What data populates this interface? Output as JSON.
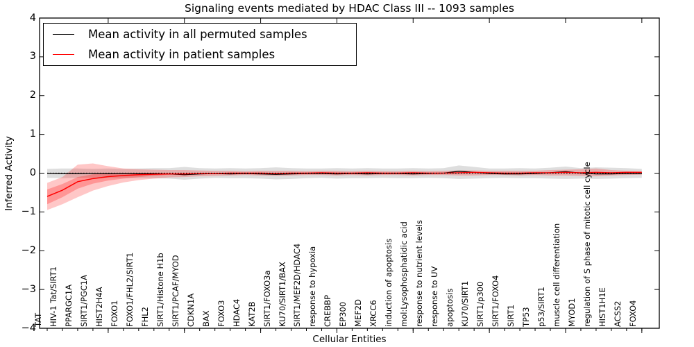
{
  "chart_data": {
    "type": "line",
    "title": "Signaling events mediated by HDAC Class III -- 1093 samples",
    "xlabel": "Cellular Entities",
    "ylabel": "Inferred Activity",
    "ylim": [
      -4,
      4
    ],
    "yticks": [
      "4",
      "3",
      "2",
      "1",
      "0",
      "−1",
      "−2",
      "−3",
      "−4"
    ],
    "grid": false,
    "legend_position": "upper-left",
    "zero_line": {
      "style": "dashed",
      "color": "#000000",
      "y": 0
    },
    "categories": [
      "TAT",
      "HIV-1 Tat/SIRT1",
      "PPARGC1A",
      "SIRT1/PGC1A",
      "HIST2H4A",
      "FOXO1",
      "FOXO1/FHL2/SIRT1",
      "FHL2",
      "SIRT1/Histone H1b",
      "SIRT1/PCAF/MYOD",
      "CDKN1A",
      "BAX",
      "FOXO3",
      "HDAC4",
      "KAT2B",
      "SIRT1/FOXO3a",
      "KU70/SIRT1/BAX",
      "SIRT1/MEF2D/HDAC4",
      "response to hypoxia",
      "CREBBP",
      "EP300",
      "MEF2D",
      "XRCC6",
      "induction of apoptosis",
      "mol:Lysophosphatidic acid",
      "response to nutrient levels",
      "response to UV",
      "apoptosis",
      "KU70/SIRT1",
      "SIRT1/p300",
      "SIRT1/FOXO4",
      "SIRT1",
      "TP53",
      "p53/SIRT1",
      "muscle cell differentiation",
      "MYOD1",
      "regulation of S phase of mitotic cell cycle",
      "HIST1H1E",
      "ACSS2",
      "FOXO4"
    ],
    "series": [
      {
        "name": "Mean activity in all permuted samples",
        "color": "#000000",
        "values": [
          -0.005,
          -0.01,
          -0.01,
          -0.005,
          -0.01,
          -0.005,
          -0.01,
          -0.01,
          -0.02,
          -0.04,
          -0.02,
          -0.01,
          -0.02,
          -0.01,
          -0.02,
          -0.03,
          -0.02,
          -0.01,
          -0.01,
          -0.02,
          -0.01,
          -0.02,
          -0.01,
          -0.01,
          -0.02,
          -0.01,
          0,
          0.05,
          0.02,
          -0.01,
          -0.02,
          -0.02,
          -0.01,
          0.01,
          0.04,
          0,
          -0.02,
          -0.02,
          -0.01,
          -0.01
        ]
      },
      {
        "name": "Mean activity in patient samples",
        "color": "#ff0000",
        "values": [
          -0.6,
          -0.44,
          -0.22,
          -0.14,
          -0.09,
          -0.06,
          -0.04,
          -0.03,
          -0.02,
          -0.02,
          -0.01,
          -0.01,
          0,
          0,
          0,
          -0.01,
          0,
          0,
          0.01,
          0,
          0,
          0.01,
          0,
          0,
          0.01,
          0,
          0,
          0.01,
          0.02,
          0.01,
          0,
          0,
          0.01,
          0.01,
          0.02,
          0.01,
          0.02,
          0.01,
          0.02,
          0.02
        ]
      }
    ],
    "bands": [
      {
        "name": "permuted-samples-range",
        "color": "#000000",
        "opacity": 0.13,
        "upper": [
          0.11,
          0.12,
          0.12,
          0.11,
          0.12,
          0.11,
          0.12,
          0.13,
          0.13,
          0.16,
          0.13,
          0.12,
          0.13,
          0.12,
          0.13,
          0.15,
          0.13,
          0.12,
          0.12,
          0.13,
          0.12,
          0.13,
          0.12,
          0.12,
          0.13,
          0.12,
          0.13,
          0.2,
          0.16,
          0.12,
          0.12,
          0.13,
          0.12,
          0.14,
          0.17,
          0.13,
          0.15,
          0.14,
          0.13,
          0.11
        ],
        "lower": [
          -0.12,
          -0.13,
          -0.12,
          -0.12,
          -0.12,
          -0.12,
          -0.13,
          -0.13,
          -0.14,
          -0.17,
          -0.14,
          -0.12,
          -0.13,
          -0.13,
          -0.14,
          -0.16,
          -0.15,
          -0.13,
          -0.12,
          -0.14,
          -0.13,
          -0.13,
          -0.12,
          -0.13,
          -0.13,
          -0.12,
          -0.13,
          -0.15,
          -0.14,
          -0.13,
          -0.12,
          -0.13,
          -0.13,
          -0.14,
          -0.15,
          -0.14,
          -0.15,
          -0.14,
          -0.13,
          -0.12
        ]
      },
      {
        "name": "patient-samples-range",
        "color": "#ff0000",
        "opacity": 0.22,
        "upper": [
          -0.25,
          -0.1,
          0.22,
          0.25,
          0.18,
          0.12,
          0.1,
          0.09,
          0.08,
          0.08,
          0.07,
          0.06,
          0.06,
          0.05,
          0.06,
          0.06,
          0.06,
          0.05,
          0.06,
          0.06,
          0.05,
          0.06,
          0.05,
          0.05,
          0.06,
          0.05,
          0.06,
          0.07,
          0.07,
          0.06,
          0.06,
          0.06,
          0.06,
          0.08,
          0.09,
          0.1,
          0.12,
          0.08,
          0.06,
          0.05
        ],
        "lower": [
          -0.95,
          -0.8,
          -0.62,
          -0.45,
          -0.33,
          -0.24,
          -0.18,
          -0.14,
          -0.11,
          -0.1,
          -0.08,
          -0.07,
          -0.06,
          -0.05,
          -0.06,
          -0.07,
          -0.06,
          -0.05,
          -0.05,
          -0.06,
          -0.05,
          -0.06,
          -0.05,
          -0.05,
          -0.06,
          -0.05,
          -0.05,
          -0.06,
          -0.06,
          -0.05,
          -0.05,
          -0.06,
          -0.05,
          -0.06,
          -0.06,
          -0.07,
          -0.08,
          -0.06,
          -0.05,
          -0.04
        ]
      },
      {
        "name": "patient-samples-inner-range",
        "color": "#ff0000",
        "opacity": 0.25,
        "upper": [
          -0.42,
          -0.28,
          -0.1,
          -0.03,
          0.0,
          0.01,
          0.01,
          0.0,
          -0.01,
          -0.02,
          -0.01,
          -0.01,
          0,
          0,
          0,
          -0.01,
          0,
          0,
          0.01,
          0,
          0,
          0.01,
          0,
          0,
          0.01,
          0,
          0,
          0.01,
          0.02,
          0.01,
          0,
          0,
          0.01,
          0.01,
          0.02,
          0.01,
          0.02,
          0.01,
          0.02,
          0.02
        ],
        "lower": [
          -0.8,
          -0.62,
          -0.4,
          -0.27,
          -0.19,
          -0.14,
          -0.1,
          -0.07,
          -0.04,
          -0.02,
          -0.01,
          -0.01,
          0,
          0,
          0,
          -0.01,
          0,
          0,
          0.01,
          0,
          0,
          0.01,
          0,
          0,
          0.01,
          0,
          0,
          0.01,
          0.02,
          0.01,
          0,
          0,
          0.01,
          0.01,
          0.02,
          0.01,
          0.02,
          0.01,
          0.02,
          0.02
        ]
      }
    ]
  },
  "legend": {
    "entries": [
      {
        "label": "Mean activity in all permuted samples",
        "color": "#000000"
      },
      {
        "label": "Mean activity in patient samples",
        "color": "#ff0000"
      }
    ]
  }
}
